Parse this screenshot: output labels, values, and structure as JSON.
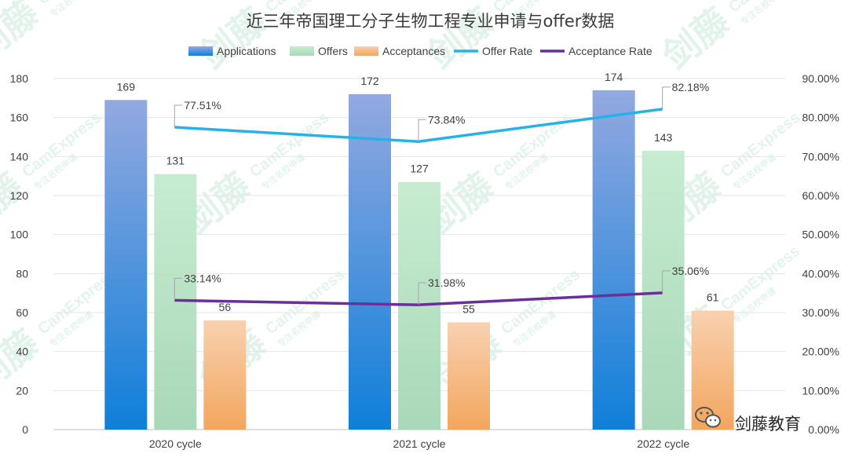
{
  "chart_data": {
    "type": "bar",
    "title": "近三年帝国理工分子生物工程专业申请与offer数据",
    "categories": [
      "2020 cycle",
      "2021 cycle",
      "2022 cycle"
    ],
    "series": [
      {
        "name": "Applications",
        "kind": "bar",
        "axis": "left",
        "values": [
          169,
          172,
          174
        ],
        "color_top": "#93a9e0",
        "color_bottom": "#0f7fd9"
      },
      {
        "name": "Offers",
        "kind": "bar",
        "axis": "left",
        "values": [
          131,
          127,
          143
        ],
        "color_top": "#c7ecd1",
        "color_bottom": "#a9d8b8"
      },
      {
        "name": "Acceptances",
        "kind": "bar",
        "axis": "left",
        "values": [
          56,
          55,
          61
        ],
        "color_top": "#f8d1b0",
        "color_bottom": "#f3a65e"
      },
      {
        "name": "Offer Rate",
        "kind": "line",
        "axis": "right",
        "values": [
          77.51,
          73.84,
          82.18
        ],
        "labels": [
          "77.51%",
          "73.84%",
          "82.18%"
        ],
        "color": "#26b2e6"
      },
      {
        "name": "Acceptance Rate",
        "kind": "line",
        "axis": "right",
        "values": [
          33.14,
          31.98,
          35.06
        ],
        "labels": [
          "33.14%",
          "31.98%",
          "35.06%"
        ],
        "color": "#6a2f9a"
      }
    ],
    "ylim_left": [
      0,
      180
    ],
    "yticks_left": [
      "0",
      "20",
      "40",
      "60",
      "80",
      "100",
      "120",
      "140",
      "160",
      "180"
    ],
    "ylim_right": [
      0,
      90
    ],
    "yticks_right": [
      "0.00%",
      "10.00%",
      "20.00%",
      "30.00%",
      "40.00%",
      "50.00%",
      "60.00%",
      "70.00%",
      "80.00%",
      "90.00%"
    ],
    "legend_position": "top",
    "grid": "horizontal"
  },
  "watermark": {
    "brand_cn": "剑藤",
    "brand_en": "CamExpress",
    "tagline": "专注名校申请"
  },
  "logo": {
    "icon": "wechat-icon",
    "text": "剑藤教育"
  }
}
